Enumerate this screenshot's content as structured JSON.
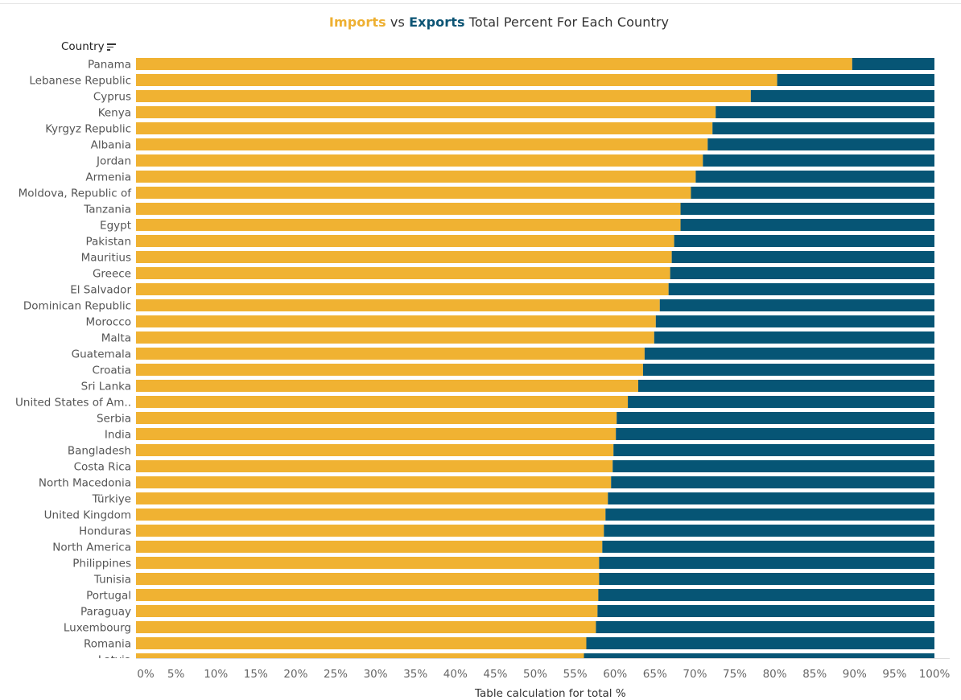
{
  "title": {
    "part_imports": "Imports",
    "part_vs": " vs ",
    "part_exports": "Exports",
    "part_rest": " Total Percent For Each Country"
  },
  "country_header": "Country",
  "axis_title": "Table calculation for total %",
  "colors": {
    "imports": "#F0B232",
    "exports": "#065575"
  },
  "chart_data": {
    "type": "bar",
    "orientation": "horizontal-stacked-100",
    "title": "Imports vs Exports Total Percent For Each Country",
    "ylabel": "Country",
    "xlabel": "Table calculation for total %",
    "xlim": [
      0,
      100
    ],
    "x_ticks": [
      "0%",
      "5%",
      "10%",
      "15%",
      "20%",
      "25%",
      "30%",
      "35%",
      "40%",
      "45%",
      "50%",
      "55%",
      "60%",
      "65%",
      "70%",
      "75%",
      "80%",
      "85%",
      "90%",
      "95%",
      "100%"
    ],
    "categories": [
      "Panama",
      "Lebanese Republic",
      "Cyprus",
      "Kenya",
      "Kyrgyz Republic",
      "Albania",
      "Jordan",
      "Armenia",
      "Moldova, Republic of",
      "Tanzania",
      "Egypt",
      "Pakistan",
      "Mauritius",
      "Greece",
      "El Salvador",
      "Dominican Republic",
      "Morocco",
      "Malta",
      "Guatemala",
      "Croatia",
      "Sri Lanka",
      "United States of Am..",
      "Serbia",
      "India",
      "Bangladesh",
      "Costa Rica",
      "North Macedonia",
      "Türkiye",
      "United Kingdom",
      "Honduras",
      "North America",
      "Philippines",
      "Tunisia",
      "Portugal",
      "Paraguay",
      "Luxembourg",
      "Romania",
      "Latvia"
    ],
    "series": [
      {
        "name": "Imports",
        "values": [
          89.7,
          80.3,
          77.0,
          72.6,
          72.2,
          71.6,
          71.0,
          70.1,
          69.5,
          68.2,
          68.2,
          67.4,
          67.1,
          66.9,
          66.7,
          65.6,
          65.1,
          64.9,
          63.7,
          63.5,
          62.9,
          61.6,
          60.2,
          60.1,
          59.8,
          59.7,
          59.5,
          59.1,
          58.8,
          58.6,
          58.4,
          58.0,
          58.0,
          57.9,
          57.8,
          57.6,
          56.4,
          56.1
        ]
      },
      {
        "name": "Exports",
        "values": [
          10.3,
          19.7,
          23.0,
          27.4,
          27.8,
          28.4,
          29.0,
          29.9,
          30.5,
          31.8,
          31.8,
          32.6,
          32.9,
          33.1,
          33.3,
          34.4,
          34.9,
          35.1,
          36.3,
          36.5,
          37.1,
          38.4,
          39.8,
          39.9,
          40.2,
          40.3,
          40.5,
          40.9,
          41.2,
          41.4,
          41.6,
          42.0,
          42.0,
          42.1,
          42.2,
          42.4,
          43.6,
          43.9
        ]
      }
    ],
    "grid": false,
    "legend": "in title"
  }
}
